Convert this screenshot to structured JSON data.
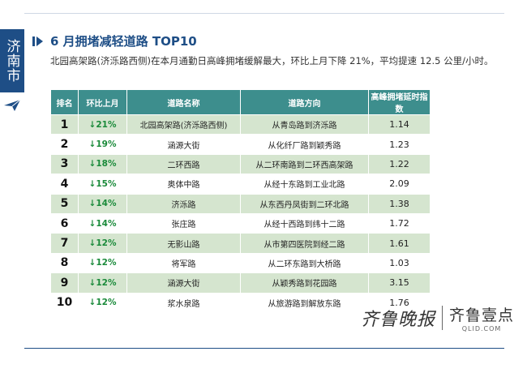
{
  "sidebar": {
    "label": "济南市"
  },
  "header": {
    "title": "6 月拥堵减轻道路 TOP10",
    "description": "北园高架路(济泺路西侧)在本月通勤日高峰拥堵缓解最大，环比上月下降 21%，平均提速 12.5 公里/小时。"
  },
  "table": {
    "headers": [
      "排名",
      "环比上月",
      "道路名称",
      "道路方向",
      "高峰拥堵延时指数"
    ],
    "rows": [
      {
        "rank": "1",
        "change": "↓21%",
        "road": "北园高架路(济泺路西侧)",
        "direction": "从青岛路到济泺路",
        "index": "1.14"
      },
      {
        "rank": "2",
        "change": "↓19%",
        "road": "涵源大街",
        "direction": "从化纤厂路到颖秀路",
        "index": "1.23"
      },
      {
        "rank": "3",
        "change": "↓18%",
        "road": "二环西路",
        "direction": "从二环南路到二环西高架路",
        "index": "1.22"
      },
      {
        "rank": "4",
        "change": "↓15%",
        "road": "奥体中路",
        "direction": "从经十东路到工业北路",
        "index": "2.09"
      },
      {
        "rank": "5",
        "change": "↓14%",
        "road": "济泺路",
        "direction": "从东西丹凤街到二环北路",
        "index": "1.38"
      },
      {
        "rank": "6",
        "change": "↓14%",
        "road": "张庄路",
        "direction": "从经十西路到纬十二路",
        "index": "1.72"
      },
      {
        "rank": "7",
        "change": "↓12%",
        "road": "无影山路",
        "direction": "从市第四医院到经二路",
        "index": "1.61"
      },
      {
        "rank": "8",
        "change": "↓12%",
        "road": "将军路",
        "direction": "从二环东路到大桥路",
        "index": "1.03"
      },
      {
        "rank": "9",
        "change": "↓12%",
        "road": "涵源大街",
        "direction": "从颖秀路到花园路",
        "index": "3.15"
      },
      {
        "rank": "10",
        "change": "↓12%",
        "road": "浆水泉路",
        "direction": "从旅游路到解放东路",
        "index": "1.76"
      }
    ]
  },
  "logo": {
    "left_text": "齐鲁晚报",
    "right_cn": "齐鲁壹点",
    "right_en": "QLID.COM"
  },
  "colors": {
    "header_bg": "#3d8e8d",
    "stripe": "#d5e5cf",
    "accent": "#1e4e86",
    "down_green": "#1a8a3a"
  }
}
